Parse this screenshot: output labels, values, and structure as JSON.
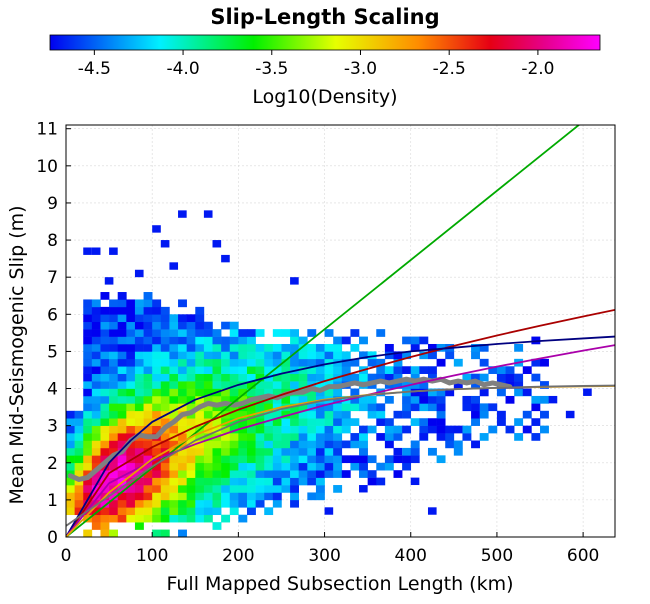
{
  "chart_data": {
    "type": "heatmap",
    "title": "Slip-Length Scaling",
    "xlabel": "Full Mapped Subsection Length (km)",
    "ylabel": "Mean Mid-Seismogenic Slip (m)",
    "xlim": [
      0,
      637
    ],
    "ylim": [
      0,
      11.1
    ],
    "x_ticks": [
      0,
      100,
      200,
      300,
      400,
      500,
      600
    ],
    "y_ticks": [
      0,
      1,
      2,
      3,
      4,
      5,
      6,
      7,
      8,
      9,
      10,
      11
    ],
    "grid": true,
    "colorbar": {
      "label": "Log10(Density)",
      "range": [
        -4.75,
        -1.65
      ],
      "ticks": [
        -4.5,
        -4.0,
        -3.5,
        -3.0,
        -2.5,
        -2.0
      ],
      "tick_labels": [
        "-4.5",
        "-4.0",
        "-3.5",
        "-3.0",
        "-2.5",
        "-2.0"
      ],
      "placement": "top"
    },
    "heatmap": {
      "x_bin_width_km": 10,
      "y_bin_width_m": 0.2,
      "density_model": {
        "peak_log10_density": -1.9,
        "peak_x_km": 50,
        "peak_y_m": 2.3,
        "sparse_outliers": [
          [
            25,
            7.7
          ],
          [
            35,
            7.7
          ],
          [
            50,
            6.9
          ],
          [
            55,
            7.7
          ],
          [
            85,
            7.1
          ],
          [
            105,
            8.3
          ],
          [
            115,
            7.9
          ],
          [
            125,
            7.3
          ],
          [
            135,
            8.7
          ],
          [
            165,
            8.7
          ],
          [
            175,
            7.9
          ],
          [
            185,
            7.5
          ],
          [
            265,
            6.9
          ],
          [
            305,
            0.7
          ],
          [
            345,
            1.3
          ],
          [
            385,
            2.3
          ],
          [
            405,
            1.5
          ],
          [
            415,
            2.7
          ],
          [
            425,
            0.7
          ],
          [
            535,
            3.9
          ],
          [
            565,
            3.7
          ],
          [
            585,
            3.3
          ],
          [
            605,
            3.9
          ]
        ]
      }
    },
    "series": [
      {
        "color": "#808080",
        "style": "thick",
        "x": [
          5,
          15,
          25,
          35,
          45,
          55,
          65,
          75,
          85,
          95,
          105,
          115,
          125,
          135,
          145,
          155,
          165,
          175,
          185,
          195,
          205,
          215,
          225,
          235,
          245,
          255,
          265,
          275,
          285,
          295,
          305,
          315,
          325,
          335,
          345,
          355,
          365,
          375,
          385,
          395,
          405,
          415,
          425,
          435,
          445,
          455,
          465,
          475,
          485,
          495,
          505,
          515
        ],
        "y": [
          1.65,
          1.55,
          1.6,
          1.8,
          2.0,
          2.2,
          2.3,
          2.6,
          2.75,
          2.7,
          2.7,
          2.95,
          3.1,
          3.3,
          3.35,
          3.5,
          3.6,
          3.55,
          3.6,
          3.55,
          3.6,
          3.7,
          3.75,
          3.8,
          3.75,
          3.85,
          3.9,
          3.9,
          4.0,
          3.95,
          4.05,
          4.05,
          4.1,
          4.15,
          4.1,
          4.15,
          4.2,
          4.15,
          4.2,
          4.25,
          4.2,
          4.25,
          4.2,
          4.25,
          4.15,
          4.2,
          4.15,
          4.2,
          4.1,
          4.15,
          4.1,
          4.05
        ]
      },
      {
        "color": "#00aa00",
        "x": [
          0,
          595
        ],
        "y": [
          0,
          11.1
        ]
      },
      {
        "color": "#aa0000",
        "x": [
          0,
          50,
          100,
          150,
          200,
          250,
          300,
          350,
          400,
          450,
          500,
          550,
          600,
          637
        ],
        "y": [
          0,
          1.72,
          2.42,
          2.97,
          3.43,
          3.83,
          4.2,
          4.53,
          4.85,
          5.15,
          5.43,
          5.69,
          5.94,
          6.12
        ]
      },
      {
        "color": "#000080",
        "x": [
          0,
          25,
          50,
          75,
          100,
          150,
          200,
          250,
          300,
          350,
          400,
          450,
          500,
          550,
          600,
          637
        ],
        "y": [
          0,
          1.0,
          2.0,
          2.6,
          3.1,
          3.7,
          4.1,
          4.4,
          4.65,
          4.85,
          5.0,
          5.1,
          5.2,
          5.28,
          5.35,
          5.4
        ]
      },
      {
        "color": "#aa00aa",
        "x": [
          0,
          50,
          100,
          150,
          200,
          250,
          300,
          350,
          400,
          450,
          500,
          550,
          600,
          637
        ],
        "y": [
          0,
          1.45,
          2.05,
          2.5,
          2.9,
          3.23,
          3.55,
          3.83,
          4.1,
          4.35,
          4.59,
          4.81,
          5.02,
          5.17
        ]
      },
      {
        "color": "#e8a000",
        "x": [
          0,
          50,
          100,
          150,
          200,
          250,
          300,
          350,
          400,
          450,
          500,
          550,
          600,
          637
        ],
        "y": [
          0,
          1.2,
          2.1,
          2.75,
          3.2,
          3.5,
          3.7,
          3.83,
          3.92,
          3.98,
          4.02,
          4.04,
          4.06,
          4.07
        ]
      },
      {
        "color": "#707070",
        "x": [
          0,
          50,
          100,
          150,
          200,
          250,
          300,
          350,
          400,
          450,
          500,
          550,
          600,
          637
        ],
        "y": [
          0.3,
          1.1,
          1.9,
          2.6,
          3.1,
          3.45,
          3.68,
          3.82,
          3.92,
          3.98,
          4.02,
          4.05,
          4.07,
          4.08
        ]
      }
    ]
  }
}
